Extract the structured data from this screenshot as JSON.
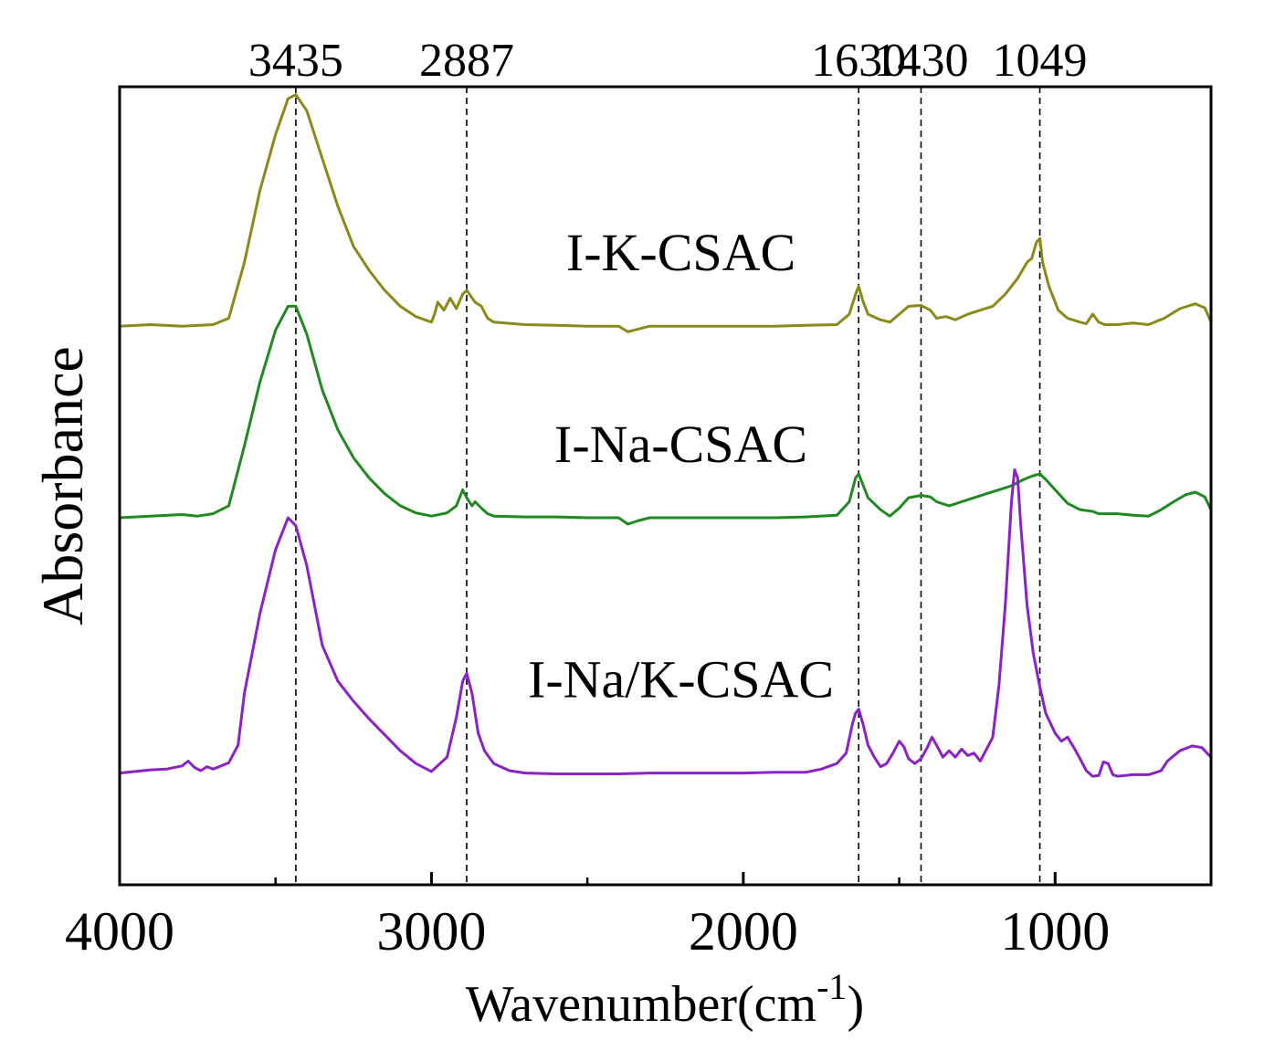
{
  "chart_data": {
    "type": "line",
    "title": "",
    "xlabel": "Wavenumber(cm",
    "xlabel_superscript": "-1",
    "xlabel_suffix": ")",
    "ylabel": "Absorbance",
    "xlim": [
      4000,
      500
    ],
    "ylim": [
      0,
      100
    ],
    "x_ticks": [
      4000,
      3000,
      2000,
      1000
    ],
    "x_minor_ticks": [
      3500,
      2500,
      1500,
      500
    ],
    "y_ticks": [],
    "grid": false,
    "reference_lines": [
      {
        "x": 3435,
        "label": "3435"
      },
      {
        "x": 2887,
        "label": "2887"
      },
      {
        "x": 1630,
        "label": "1630"
      },
      {
        "x": 1430,
        "label": "1430"
      },
      {
        "x": 1049,
        "label": "1049"
      }
    ],
    "series": [
      {
        "name": "I-K-CSAC",
        "color": "#8a8a1a",
        "label_at": [
          2200,
          77
        ],
        "points": [
          [
            4000,
            70
          ],
          [
            3900,
            70.2
          ],
          [
            3800,
            70
          ],
          [
            3700,
            70.2
          ],
          [
            3650,
            71
          ],
          [
            3600,
            78
          ],
          [
            3550,
            87
          ],
          [
            3500,
            94
          ],
          [
            3460,
            98.5
          ],
          [
            3435,
            99
          ],
          [
            3400,
            97
          ],
          [
            3350,
            91
          ],
          [
            3300,
            85
          ],
          [
            3250,
            80
          ],
          [
            3200,
            77
          ],
          [
            3150,
            74.5
          ],
          [
            3100,
            72.5
          ],
          [
            3050,
            71.2
          ],
          [
            3000,
            70.5
          ],
          [
            2990,
            71.5
          ],
          [
            2980,
            73
          ],
          [
            2960,
            72
          ],
          [
            2940,
            73.5
          ],
          [
            2920,
            72.2
          ],
          [
            2900,
            74
          ],
          [
            2887,
            74.5
          ],
          [
            2860,
            73
          ],
          [
            2840,
            72.5
          ],
          [
            2820,
            71
          ],
          [
            2800,
            70.5
          ],
          [
            2700,
            70.2
          ],
          [
            2600,
            70.1
          ],
          [
            2500,
            70
          ],
          [
            2400,
            70
          ],
          [
            2370,
            69.3
          ],
          [
            2340,
            69.6
          ],
          [
            2300,
            70
          ],
          [
            2200,
            70
          ],
          [
            2100,
            70
          ],
          [
            2000,
            70
          ],
          [
            1900,
            70
          ],
          [
            1800,
            70.1
          ],
          [
            1700,
            70.2
          ],
          [
            1660,
            71.5
          ],
          [
            1640,
            74
          ],
          [
            1630,
            75
          ],
          [
            1615,
            73
          ],
          [
            1600,
            71.5
          ],
          [
            1560,
            70.8
          ],
          [
            1530,
            70.5
          ],
          [
            1500,
            71.5
          ],
          [
            1470,
            72.5
          ],
          [
            1430,
            72.6
          ],
          [
            1400,
            72
          ],
          [
            1380,
            71
          ],
          [
            1350,
            71.2
          ],
          [
            1320,
            70.8
          ],
          [
            1280,
            71.5
          ],
          [
            1240,
            72
          ],
          [
            1200,
            72.5
          ],
          [
            1160,
            74
          ],
          [
            1120,
            76
          ],
          [
            1090,
            78
          ],
          [
            1075,
            78.5
          ],
          [
            1060,
            80.5
          ],
          [
            1049,
            81
          ],
          [
            1040,
            78
          ],
          [
            1020,
            75
          ],
          [
            990,
            72
          ],
          [
            960,
            71
          ],
          [
            920,
            70.5
          ],
          [
            900,
            70.3
          ],
          [
            880,
            71.5
          ],
          [
            860,
            70.5
          ],
          [
            840,
            70.2
          ],
          [
            800,
            70.2
          ],
          [
            750,
            70.4
          ],
          [
            700,
            70.2
          ],
          [
            650,
            71
          ],
          [
            600,
            72.2
          ],
          [
            550,
            72.8
          ],
          [
            520,
            72.3
          ],
          [
            500,
            70.5
          ]
        ]
      },
      {
        "name": "I-Na-CSAC",
        "color": "#1f8a1f",
        "label_at": [
          2200,
          53
        ],
        "points": [
          [
            4000,
            46
          ],
          [
            3900,
            46.2
          ],
          [
            3800,
            46.4
          ],
          [
            3750,
            46.2
          ],
          [
            3700,
            46.5
          ],
          [
            3650,
            47.5
          ],
          [
            3600,
            55
          ],
          [
            3550,
            63
          ],
          [
            3500,
            69.5
          ],
          [
            3460,
            72.5
          ],
          [
            3435,
            72.5
          ],
          [
            3400,
            69
          ],
          [
            3350,
            62
          ],
          [
            3300,
            57
          ],
          [
            3250,
            53.5
          ],
          [
            3200,
            51
          ],
          [
            3150,
            49
          ],
          [
            3100,
            47.5
          ],
          [
            3050,
            46.6
          ],
          [
            3000,
            46.2
          ],
          [
            2950,
            46.6
          ],
          [
            2920,
            47.5
          ],
          [
            2900,
            49.5
          ],
          [
            2887,
            48.5
          ],
          [
            2870,
            47.5
          ],
          [
            2860,
            48
          ],
          [
            2840,
            47.2
          ],
          [
            2820,
            46.5
          ],
          [
            2800,
            46.2
          ],
          [
            2700,
            46.1
          ],
          [
            2600,
            46.1
          ],
          [
            2500,
            46
          ],
          [
            2400,
            46
          ],
          [
            2370,
            45.2
          ],
          [
            2340,
            45.6
          ],
          [
            2300,
            46
          ],
          [
            2200,
            46
          ],
          [
            2100,
            46
          ],
          [
            2000,
            46
          ],
          [
            1900,
            46
          ],
          [
            1800,
            46.1
          ],
          [
            1700,
            46.3
          ],
          [
            1660,
            48
          ],
          [
            1640,
            51
          ],
          [
            1630,
            51.5
          ],
          [
            1615,
            50
          ],
          [
            1600,
            48.5
          ],
          [
            1560,
            47
          ],
          [
            1530,
            46.2
          ],
          [
            1500,
            47.2
          ],
          [
            1470,
            48.5
          ],
          [
            1430,
            48.8
          ],
          [
            1400,
            48.6
          ],
          [
            1380,
            48
          ],
          [
            1340,
            47.5
          ],
          [
            1300,
            48
          ],
          [
            1260,
            48.5
          ],
          [
            1220,
            49
          ],
          [
            1180,
            49.5
          ],
          [
            1140,
            50
          ],
          [
            1100,
            50.8
          ],
          [
            1075,
            51.2
          ],
          [
            1049,
            51.5
          ],
          [
            1030,
            50.8
          ],
          [
            1000,
            49.5
          ],
          [
            960,
            47.8
          ],
          [
            920,
            47
          ],
          [
            880,
            46.8
          ],
          [
            860,
            46.5
          ],
          [
            800,
            46.5
          ],
          [
            750,
            46.3
          ],
          [
            700,
            46.2
          ],
          [
            660,
            47
          ],
          [
            620,
            48
          ],
          [
            580,
            48.9
          ],
          [
            550,
            49.2
          ],
          [
            520,
            48.6
          ],
          [
            500,
            47
          ]
        ]
      },
      {
        "name": "I-Na/K-CSAC",
        "color": "#8a22c7",
        "label_at": [
          2200,
          23.5
        ],
        "points": [
          [
            4000,
            14
          ],
          [
            3900,
            14.4
          ],
          [
            3850,
            14.5
          ],
          [
            3800,
            14.9
          ],
          [
            3780,
            15.5
          ],
          [
            3760,
            14.7
          ],
          [
            3740,
            14.3
          ],
          [
            3720,
            14.8
          ],
          [
            3700,
            14.5
          ],
          [
            3650,
            15.3
          ],
          [
            3620,
            17.5
          ],
          [
            3600,
            24
          ],
          [
            3550,
            34
          ],
          [
            3500,
            42
          ],
          [
            3460,
            46
          ],
          [
            3435,
            45
          ],
          [
            3400,
            40
          ],
          [
            3350,
            30
          ],
          [
            3300,
            25.5
          ],
          [
            3250,
            23
          ],
          [
            3200,
            20.8
          ],
          [
            3150,
            18.8
          ],
          [
            3100,
            16.8
          ],
          [
            3050,
            15.2
          ],
          [
            3000,
            14.2
          ],
          [
            2950,
            16
          ],
          [
            2920,
            21
          ],
          [
            2900,
            25.5
          ],
          [
            2887,
            26.5
          ],
          [
            2870,
            24
          ],
          [
            2850,
            19
          ],
          [
            2830,
            16.8
          ],
          [
            2800,
            15.2
          ],
          [
            2750,
            14.3
          ],
          [
            2700,
            14
          ],
          [
            2600,
            13.9
          ],
          [
            2500,
            13.9
          ],
          [
            2400,
            13.9
          ],
          [
            2300,
            14
          ],
          [
            2200,
            14
          ],
          [
            2100,
            14
          ],
          [
            2000,
            14
          ],
          [
            1900,
            14.1
          ],
          [
            1800,
            14.1
          ],
          [
            1750,
            14.5
          ],
          [
            1700,
            15.2
          ],
          [
            1670,
            16.5
          ],
          [
            1650,
            20.2
          ],
          [
            1640,
            21.5
          ],
          [
            1630,
            22
          ],
          [
            1615,
            20
          ],
          [
            1600,
            17.5
          ],
          [
            1580,
            16
          ],
          [
            1560,
            14.8
          ],
          [
            1540,
            15.2
          ],
          [
            1520,
            16.5
          ],
          [
            1500,
            18
          ],
          [
            1485,
            17.3
          ],
          [
            1470,
            15.8
          ],
          [
            1450,
            15.2
          ],
          [
            1430,
            15.8
          ],
          [
            1410,
            17.2
          ],
          [
            1395,
            18.5
          ],
          [
            1380,
            17.5
          ],
          [
            1360,
            16
          ],
          [
            1340,
            16.8
          ],
          [
            1320,
            16
          ],
          [
            1300,
            17
          ],
          [
            1280,
            16.2
          ],
          [
            1260,
            16.5
          ],
          [
            1240,
            15.5
          ],
          [
            1220,
            17
          ],
          [
            1200,
            18.5
          ],
          [
            1180,
            25
          ],
          [
            1160,
            35
          ],
          [
            1140,
            48
          ],
          [
            1130,
            52
          ],
          [
            1120,
            51
          ],
          [
            1110,
            45
          ],
          [
            1090,
            35
          ],
          [
            1070,
            29
          ],
          [
            1050,
            25
          ],
          [
            1030,
            21.5
          ],
          [
            1000,
            19
          ],
          [
            980,
            18
          ],
          [
            960,
            18.5
          ],
          [
            940,
            17.2
          ],
          [
            920,
            15.8
          ],
          [
            900,
            14.3
          ],
          [
            880,
            13.6
          ],
          [
            860,
            13.7
          ],
          [
            845,
            15.4
          ],
          [
            830,
            15.2
          ],
          [
            815,
            13.8
          ],
          [
            800,
            13.6
          ],
          [
            750,
            13.8
          ],
          [
            700,
            13.8
          ],
          [
            660,
            14.3
          ],
          [
            640,
            15.5
          ],
          [
            600,
            16.8
          ],
          [
            560,
            17.4
          ],
          [
            530,
            17.2
          ],
          [
            500,
            16
          ]
        ]
      }
    ]
  }
}
